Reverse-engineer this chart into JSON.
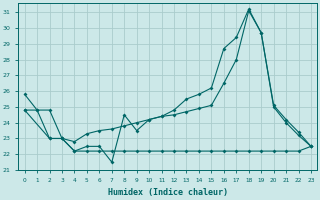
{
  "xlabel": "Humidex (Indice chaleur)",
  "bg_color": "#cce8e8",
  "grid_color": "#aacccc",
  "line_color": "#006666",
  "xlim": [
    -0.5,
    23.5
  ],
  "ylim": [
    21.0,
    31.6
  ],
  "yticks": [
    21,
    22,
    23,
    24,
    25,
    26,
    27,
    28,
    29,
    30,
    31
  ],
  "xticks": [
    0,
    1,
    2,
    3,
    4,
    5,
    6,
    7,
    8,
    9,
    10,
    11,
    12,
    13,
    14,
    15,
    16,
    17,
    18,
    19,
    20,
    21,
    22,
    23
  ],
  "line1_x": [
    0,
    1,
    2,
    3,
    4,
    5,
    6,
    7,
    8,
    9,
    10,
    11,
    12,
    13,
    14,
    15,
    16,
    17,
    18,
    19,
    20,
    21,
    22,
    23
  ],
  "line1_y": [
    25.8,
    24.8,
    24.8,
    23.0,
    22.2,
    22.5,
    22.5,
    21.5,
    24.5,
    23.5,
    24.2,
    24.4,
    24.8,
    25.5,
    25.8,
    26.2,
    28.7,
    29.4,
    31.2,
    29.7,
    25.0,
    24.0,
    23.2,
    22.5
  ],
  "line2_x": [
    0,
    2,
    3,
    4,
    5,
    6,
    7,
    8,
    9,
    10,
    11,
    12,
    13,
    14,
    15,
    16,
    17,
    18,
    19,
    20,
    21,
    22,
    23
  ],
  "line2_y": [
    24.8,
    23.0,
    23.0,
    22.8,
    23.3,
    23.5,
    23.6,
    23.8,
    24.0,
    24.2,
    24.4,
    24.5,
    24.7,
    24.9,
    25.1,
    26.5,
    28.0,
    31.1,
    29.7,
    25.1,
    24.2,
    23.4,
    22.5
  ],
  "line3_x": [
    0,
    1,
    2,
    3,
    4,
    5,
    6,
    7,
    8,
    9,
    10,
    11,
    12,
    13,
    14,
    15,
    16,
    17,
    18,
    19,
    20,
    21,
    22,
    23
  ],
  "line3_y": [
    24.8,
    24.8,
    23.0,
    23.0,
    22.2,
    22.2,
    22.2,
    22.2,
    22.2,
    22.2,
    22.2,
    22.2,
    22.2,
    22.2,
    22.2,
    22.2,
    22.2,
    22.2,
    22.2,
    22.2,
    22.2,
    22.2,
    22.2,
    22.5
  ]
}
